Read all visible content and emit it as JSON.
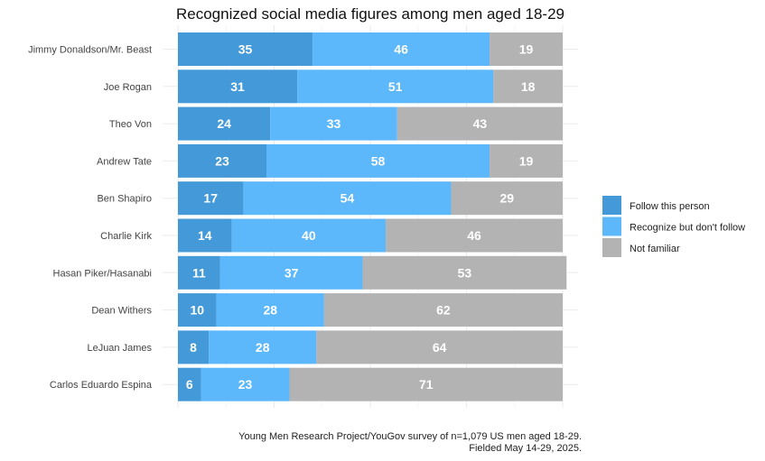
{
  "chart_data": {
    "type": "bar",
    "orientation": "horizontal",
    "stacked": true,
    "title": "Recognized social media figures among men aged 18-29",
    "xlabel": "",
    "ylabel": "",
    "xlim": [
      0,
      100
    ],
    "grid": true,
    "legend_position": "right",
    "categories": [
      "Jimmy Donaldson/Mr. Beast",
      "Joe Rogan",
      "Theo Von",
      "Andrew Tate",
      "Ben Shapiro",
      "Charlie Kirk",
      "Hasan Piker/Hasanabi",
      "Dean Withers",
      "LeJuan James",
      "Carlos Eduardo Espina"
    ],
    "series": [
      {
        "name": "Follow this person",
        "color": "#4499d8",
        "values": [
          35,
          31,
          24,
          23,
          17,
          14,
          11,
          10,
          8,
          6
        ]
      },
      {
        "name": "Recognize but don't follow",
        "color": "#5db8fb",
        "values": [
          46,
          51,
          33,
          58,
          54,
          40,
          37,
          28,
          28,
          23
        ]
      },
      {
        "name": "Not familiar",
        "color": "#b3b3b3",
        "values": [
          19,
          18,
          43,
          19,
          29,
          46,
          53,
          62,
          64,
          71
        ]
      }
    ]
  },
  "caption": {
    "line1": "Young Men Research Project/YouGov survey of n=1,079 US men aged 18-29.",
    "line2": "Fielded May 14-29, 2025."
  }
}
